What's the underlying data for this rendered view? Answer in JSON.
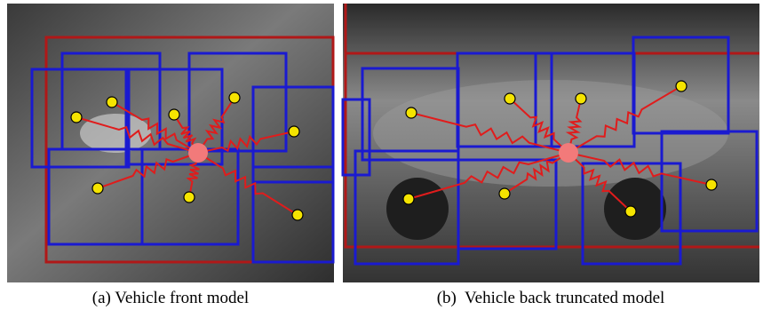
{
  "figures": [
    {
      "caption": "(a) Vehicle front model"
    },
    {
      "caption": "(b)  Vehicle back truncated model"
    }
  ]
}
